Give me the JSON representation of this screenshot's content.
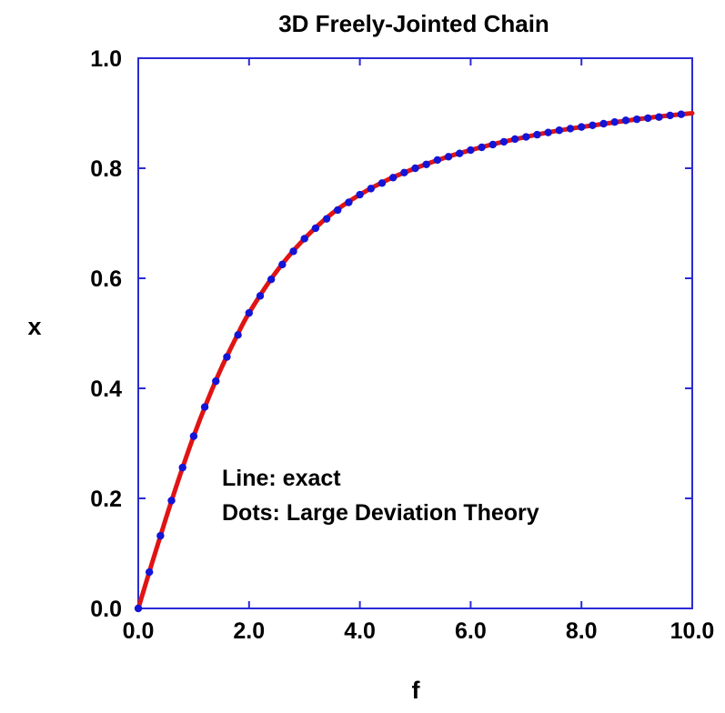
{
  "chart_data": {
    "type": "line",
    "title": "3D Freely-Jointed Chain",
    "xlabel": "f",
    "ylabel": "x",
    "xlim": [
      0,
      10
    ],
    "ylim": [
      0,
      1
    ],
    "x_ticks": [
      "0.0",
      "2.0",
      "4.0",
      "6.0",
      "8.0",
      "10.0"
    ],
    "y_ticks": [
      "0.0",
      "0.2",
      "0.4",
      "0.6",
      "0.8",
      "1.0"
    ],
    "grid": false,
    "colors": {
      "axes": "#2a2ad6",
      "line": "#e01414",
      "dots": "#1414d6"
    },
    "annotations": [
      "Line: exact",
      "Dots: Large Deviation Theory"
    ],
    "series": [
      {
        "style": "line",
        "x": [
          0,
          0.25,
          0.5,
          0.75,
          1.0,
          1.25,
          1.5,
          1.75,
          2.0,
          2.5,
          3.0,
          3.5,
          4.0,
          4.5,
          5.0,
          5.5,
          6.0,
          6.5,
          7.0,
          7.5,
          8.0,
          8.5,
          9.0,
          9.5,
          10.0
        ],
        "y": [
          0.0,
          0.083,
          0.164,
          0.241,
          0.313,
          0.378,
          0.437,
          0.489,
          0.537,
          0.613,
          0.672,
          0.718,
          0.752,
          0.779,
          0.8,
          0.818,
          0.833,
          0.846,
          0.857,
          0.867,
          0.875,
          0.882,
          0.889,
          0.895,
          0.9
        ]
      },
      {
        "style": "dots",
        "x": [
          0.0,
          0.2,
          0.4,
          0.6,
          0.8,
          1.0,
          1.2,
          1.4,
          1.6,
          1.8,
          2.0,
          2.2,
          2.4,
          2.6,
          2.8,
          3.0,
          3.2,
          3.4,
          3.6,
          3.8,
          4.0,
          4.2,
          4.4,
          4.6,
          4.8,
          5.0,
          5.2,
          5.4,
          5.6,
          5.8,
          6.0,
          6.2,
          6.4,
          6.6,
          6.8,
          7.0,
          7.2,
          7.4,
          7.6,
          7.8,
          8.0,
          8.2,
          8.4,
          8.6,
          8.8,
          9.0,
          9.2,
          9.4,
          9.6,
          9.8
        ],
        "y": [
          0.0,
          0.066,
          0.132,
          0.196,
          0.256,
          0.313,
          0.366,
          0.413,
          0.457,
          0.497,
          0.537,
          0.568,
          0.598,
          0.625,
          0.649,
          0.672,
          0.691,
          0.708,
          0.724,
          0.738,
          0.752,
          0.763,
          0.773,
          0.783,
          0.792,
          0.8,
          0.807,
          0.815,
          0.821,
          0.827,
          0.833,
          0.838,
          0.843,
          0.848,
          0.853,
          0.857,
          0.861,
          0.865,
          0.869,
          0.872,
          0.875,
          0.878,
          0.881,
          0.884,
          0.887,
          0.889,
          0.891,
          0.893,
          0.896,
          0.898
        ]
      }
    ]
  }
}
